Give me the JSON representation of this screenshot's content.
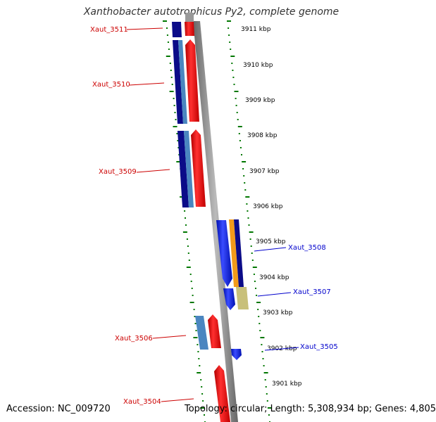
{
  "title": "Xanthobacter autotrophicus Py2, complete genome",
  "accession": "Accession: NC_009720",
  "summary": "Topology: circular; Length: 5,308,934 bp; Genes: 4,805",
  "colors": {
    "forward_label": "#cc0000",
    "reverse_label": "#0000cc",
    "ruler_tick": "#007700",
    "backbone": "#888888",
    "red": "#ee1111",
    "blue": "#1122ee",
    "navy": "#0b0b88",
    "steel": "#4a86c0",
    "orange": "#f29a1a",
    "khaki": "#c8c07a"
  },
  "icons": [
    "strand-arrow-icon"
  ],
  "ruler": [
    "3911 kbp",
    "3910 kbp",
    "3909 kbp",
    "3908 kbp",
    "3907 kbp",
    "3906 kbp",
    "3905 kbp",
    "3904 kbp",
    "3903 kbp",
    "3902 kbp",
    "3901 kbp"
  ],
  "genes_forward": [
    "Xaut_3511",
    "Xaut_3510",
    "Xaut_3509",
    "Xaut_3506",
    "Xaut_3504"
  ],
  "genes_reverse": [
    "Xaut_3508",
    "Xaut_3507",
    "Xaut_3505"
  ]
}
